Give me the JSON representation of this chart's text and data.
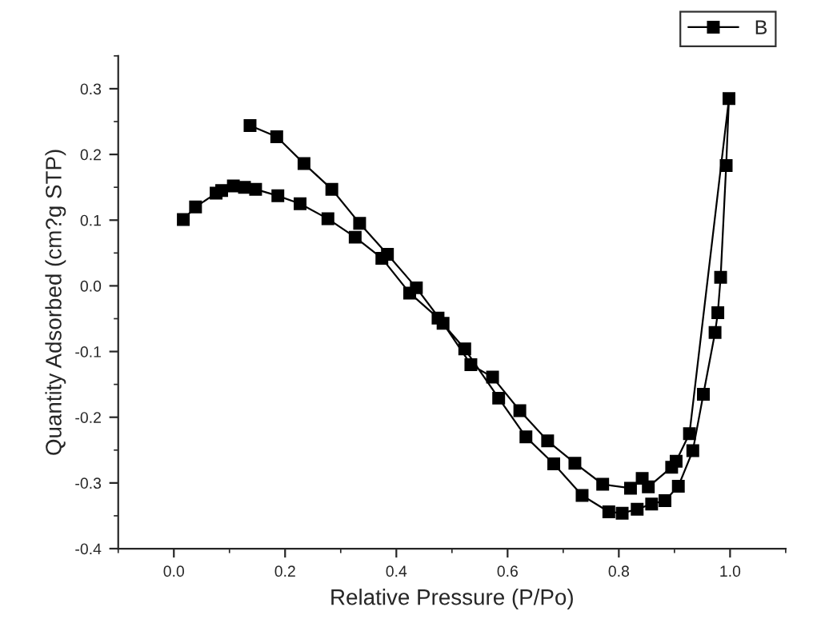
{
  "chart_data": {
    "type": "line",
    "xlabel": "Relative Pressure (P/Po)",
    "ylabel": "Quantity Adsorbed (cm?g STP)",
    "xlim": [
      -0.1,
      1.1
    ],
    "xticks": [
      {
        "value": 0.0,
        "label": "0.0"
      },
      0.2,
      0.4,
      0.6,
      0.8,
      {
        "value": 1.0,
        "label": "1.0"
      }
    ],
    "ylim": [
      -0.4,
      0.35
    ],
    "yticks": [
      -0.4,
      -0.3,
      -0.2,
      -0.1,
      {
        "value": 0.0,
        "label": "0.0"
      },
      0.1,
      0.2,
      0.3
    ],
    "grid": false,
    "legend": "top right",
    "marker": "square",
    "line_style": "solid",
    "series": [
      {
        "name": "B",
        "color": "#000000",
        "x": [
          0.017,
          0.039,
          0.076,
          0.086,
          0.107,
          0.127,
          0.147,
          0.187,
          0.227,
          0.277,
          0.326,
          0.374,
          0.424,
          0.475,
          0.523,
          0.584,
          0.633,
          0.683,
          0.734,
          0.782,
          0.806,
          0.833,
          0.859,
          0.883,
          0.907,
          0.933,
          0.952,
          0.973,
          0.978,
          0.983,
          0.993,
          0.998,
          0.927,
          0.903,
          0.895,
          0.853,
          0.842,
          0.821,
          0.771,
          0.721,
          0.672,
          0.622,
          0.573,
          0.534,
          0.484,
          0.436,
          0.384,
          0.334,
          0.284,
          0.234,
          0.185,
          0.137
        ],
        "values": [
          0.101,
          0.12,
          0.141,
          0.145,
          0.152,
          0.15,
          0.147,
          0.137,
          0.125,
          0.102,
          0.074,
          0.042,
          -0.011,
          -0.049,
          -0.096,
          -0.171,
          -0.23,
          -0.271,
          -0.319,
          -0.344,
          -0.346,
          -0.34,
          -0.332,
          -0.327,
          -0.305,
          -0.251,
          -0.165,
          -0.071,
          -0.041,
          0.013,
          0.183,
          0.285,
          -0.225,
          -0.267,
          -0.276,
          -0.306,
          -0.293,
          -0.308,
          -0.302,
          -0.27,
          -0.236,
          -0.19,
          -0.139,
          -0.12,
          -0.057,
          -0.003,
          0.048,
          0.095,
          0.147,
          0.186,
          0.227,
          0.244
        ]
      }
    ]
  }
}
